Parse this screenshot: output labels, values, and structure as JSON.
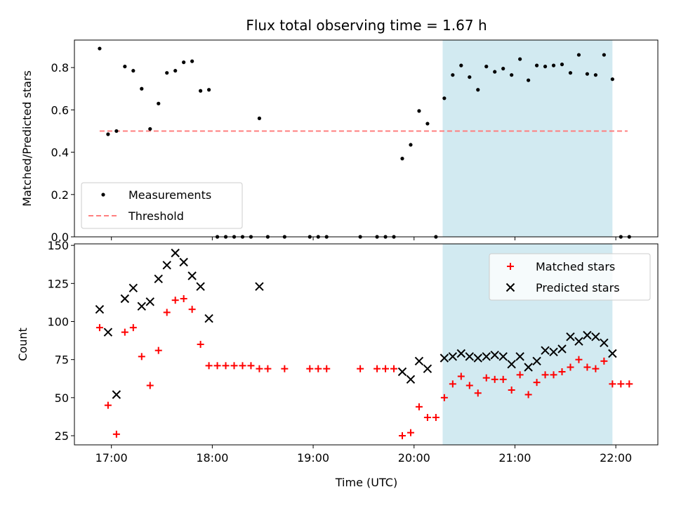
{
  "chart_data": {
    "title": "Flux total observing time = 1.67 h",
    "xlabel": "Time (UTC)",
    "x_ticks": [
      "17:00",
      "18:00",
      "19:00",
      "20:00",
      "21:00",
      "22:00"
    ],
    "xlim": [
      "16:38",
      "22:25"
    ],
    "highlight_span": [
      "20:17",
      "21:58"
    ],
    "colors": {
      "highlight": "#add8e6",
      "measurements": "#000000",
      "threshold": "#ff7f7f",
      "matched": "#ff0000",
      "predicted": "#000000"
    },
    "panels": [
      {
        "type": "scatter",
        "ylabel": "Matched/Predicted stars",
        "ylim": [
          0,
          0.93
        ],
        "y_ticks": [
          "0.0",
          "0.2",
          "0.4",
          "0.6",
          "0.8"
        ],
        "legend_position": "lower-left",
        "threshold": {
          "name": "Threshold",
          "y": 0.5,
          "x_range": [
            "16:53",
            "22:07"
          ]
        },
        "series": [
          {
            "name": "Measurements",
            "marker": "dot",
            "points": [
              [
                "16:53",
                0.89
              ],
              [
                "16:58",
                0.485
              ],
              [
                "17:03",
                0.5
              ],
              [
                "17:08",
                0.805
              ],
              [
                "17:13",
                0.785
              ],
              [
                "17:18",
                0.7
              ],
              [
                "17:23",
                0.51
              ],
              [
                "17:28",
                0.63
              ],
              [
                "17:33",
                0.775
              ],
              [
                "17:38",
                0.785
              ],
              [
                "17:43",
                0.825
              ],
              [
                "17:48",
                0.83
              ],
              [
                "17:53",
                0.69
              ],
              [
                "17:58",
                0.695
              ],
              [
                "18:03",
                0.0
              ],
              [
                "18:08",
                0.0
              ],
              [
                "18:13",
                0.0
              ],
              [
                "18:18",
                0.0
              ],
              [
                "18:23",
                0.0
              ],
              [
                "18:28",
                0.56
              ],
              [
                "18:33",
                0.0
              ],
              [
                "18:43",
                0.0
              ],
              [
                "18:58",
                0.0
              ],
              [
                "19:03",
                0.0
              ],
              [
                "19:08",
                0.0
              ],
              [
                "19:28",
                0.0
              ],
              [
                "19:38",
                0.0
              ],
              [
                "19:43",
                0.0
              ],
              [
                "19:48",
                0.0
              ],
              [
                "19:53",
                0.37
              ],
              [
                "19:58",
                0.435
              ],
              [
                "20:03",
                0.595
              ],
              [
                "20:08",
                0.535
              ],
              [
                "20:13",
                0.0
              ],
              [
                "20:18",
                0.655
              ],
              [
                "20:23",
                0.765
              ],
              [
                "20:28",
                0.81
              ],
              [
                "20:33",
                0.755
              ],
              [
                "20:38",
                0.695
              ],
              [
                "20:43",
                0.805
              ],
              [
                "20:48",
                0.78
              ],
              [
                "20:53",
                0.795
              ],
              [
                "20:58",
                0.765
              ],
              [
                "21:03",
                0.84
              ],
              [
                "21:08",
                0.74
              ],
              [
                "21:13",
                0.81
              ],
              [
                "21:18",
                0.805
              ],
              [
                "21:23",
                0.81
              ],
              [
                "21:28",
                0.815
              ],
              [
                "21:33",
                0.775
              ],
              [
                "21:38",
                0.86
              ],
              [
                "21:43",
                0.77
              ],
              [
                "21:48",
                0.765
              ],
              [
                "21:53",
                0.86
              ],
              [
                "21:58",
                0.745
              ],
              [
                "22:03",
                0.0
              ],
              [
                "22:08",
                0.0
              ]
            ]
          }
        ]
      },
      {
        "type": "scatter",
        "ylabel": "Count",
        "ylim": [
          19,
          151
        ],
        "y_ticks": [
          "25",
          "50",
          "75",
          "100",
          "125",
          "150"
        ],
        "legend_position": "upper-right",
        "series": [
          {
            "name": "Matched stars",
            "marker": "plus",
            "points": [
              [
                "16:53",
                96
              ],
              [
                "16:58",
                45
              ],
              [
                "17:03",
                26
              ],
              [
                "17:08",
                93
              ],
              [
                "17:13",
                96
              ],
              [
                "17:18",
                77
              ],
              [
                "17:23",
                58
              ],
              [
                "17:28",
                81
              ],
              [
                "17:33",
                106
              ],
              [
                "17:38",
                114
              ],
              [
                "17:43",
                115
              ],
              [
                "17:48",
                108
              ],
              [
                "17:53",
                85
              ],
              [
                "17:58",
                71
              ],
              [
                "18:03",
                71
              ],
              [
                "18:08",
                71
              ],
              [
                "18:13",
                71
              ],
              [
                "18:18",
                71
              ],
              [
                "18:23",
                71
              ],
              [
                "18:28",
                69
              ],
              [
                "18:33",
                69
              ],
              [
                "18:43",
                69
              ],
              [
                "18:58",
                69
              ],
              [
                "19:03",
                69
              ],
              [
                "19:08",
                69
              ],
              [
                "19:28",
                69
              ],
              [
                "19:38",
                69
              ],
              [
                "19:43",
                69
              ],
              [
                "19:48",
                69
              ],
              [
                "19:53",
                25
              ],
              [
                "19:58",
                27
              ],
              [
                "20:03",
                44
              ],
              [
                "20:08",
                37
              ],
              [
                "20:13",
                37
              ],
              [
                "20:18",
                50
              ],
              [
                "20:23",
                59
              ],
              [
                "20:28",
                64
              ],
              [
                "20:33",
                58
              ],
              [
                "20:38",
                53
              ],
              [
                "20:43",
                63
              ],
              [
                "20:48",
                62
              ],
              [
                "20:53",
                62
              ],
              [
                "20:58",
                55
              ],
              [
                "21:03",
                65
              ],
              [
                "21:08",
                52
              ],
              [
                "21:13",
                60
              ],
              [
                "21:18",
                65
              ],
              [
                "21:23",
                65
              ],
              [
                "21:28",
                67
              ],
              [
                "21:33",
                70
              ],
              [
                "21:38",
                75
              ],
              [
                "21:43",
                70
              ],
              [
                "21:48",
                69
              ],
              [
                "21:53",
                74
              ],
              [
                "21:58",
                59
              ],
              [
                "22:03",
                59
              ],
              [
                "22:08",
                59
              ]
            ]
          },
          {
            "name": "Predicted stars",
            "marker": "x",
            "points": [
              [
                "16:53",
                108
              ],
              [
                "16:58",
                93
              ],
              [
                "17:03",
                52
              ],
              [
                "17:08",
                115
              ],
              [
                "17:13",
                122
              ],
              [
                "17:18",
                110
              ],
              [
                "17:23",
                113
              ],
              [
                "17:28",
                128
              ],
              [
                "17:33",
                137
              ],
              [
                "17:38",
                145
              ],
              [
                "17:43",
                139
              ],
              [
                "17:48",
                130
              ],
              [
                "17:53",
                123
              ],
              [
                "17:58",
                102
              ],
              [
                "18:28",
                123
              ],
              [
                "19:53",
                67
              ],
              [
                "19:58",
                62
              ],
              [
                "20:03",
                74
              ],
              [
                "20:08",
                69
              ],
              [
                "20:18",
                76
              ],
              [
                "20:23",
                77
              ],
              [
                "20:28",
                79
              ],
              [
                "20:33",
                77
              ],
              [
                "20:38",
                76
              ],
              [
                "20:43",
                77
              ],
              [
                "20:48",
                78
              ],
              [
                "20:53",
                77
              ],
              [
                "20:58",
                72
              ],
              [
                "21:03",
                77
              ],
              [
                "21:08",
                70
              ],
              [
                "21:13",
                74
              ],
              [
                "21:18",
                81
              ],
              [
                "21:23",
                80
              ],
              [
                "21:28",
                82
              ],
              [
                "21:33",
                90
              ],
              [
                "21:38",
                87
              ],
              [
                "21:43",
                91
              ],
              [
                "21:48",
                90
              ],
              [
                "21:53",
                86
              ],
              [
                "21:58",
                79
              ]
            ]
          }
        ]
      }
    ]
  }
}
